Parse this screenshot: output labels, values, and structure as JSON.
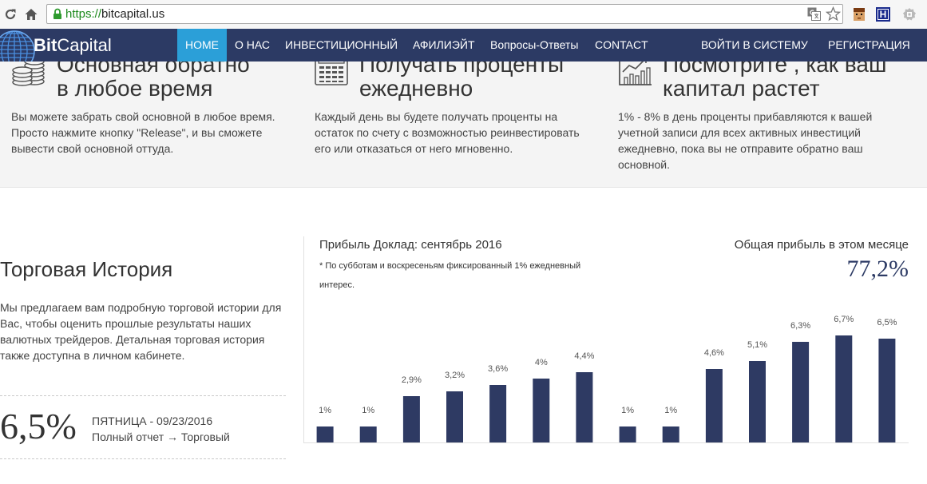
{
  "browser": {
    "url_scheme": "https://",
    "url_host": "bitcapital.us",
    "extension_h_label": "H",
    "icons": [
      "reload-icon",
      "home-icon",
      "lock-icon",
      "translate-icon",
      "star-icon",
      "face-extension-icon",
      "h-extension-icon",
      "gray-extension-icon"
    ]
  },
  "brand": {
    "name_bold": "Bit",
    "name_regular": "Capital"
  },
  "nav": {
    "items": [
      {
        "label": "HOME",
        "active": true
      },
      {
        "label": "О НАС"
      },
      {
        "label": "ИНВЕСТИЦИОННЫЙ"
      },
      {
        "label": "АФИЛИЭЙТ"
      },
      {
        "label": "Вопросы-Ответы"
      },
      {
        "label": "CONTACT"
      }
    ],
    "right_items": [
      {
        "label": "ВОЙТИ В СИСТЕМУ"
      },
      {
        "label": "РЕГИСТРАЦИЯ"
      }
    ]
  },
  "features": [
    {
      "icon": "coins-icon",
      "title_lines": [
        "Основная обратно",
        "в любое время"
      ],
      "text_lines": [
        "Вы можете забрать свой основной в любое время.",
        "Просто нажмите кнопку \"Release\", и вы сможете",
        "вывести свой основной оттуда."
      ]
    },
    {
      "icon": "calculator-icon",
      "title_lines": [
        "Получать проценты",
        "ежедневно"
      ],
      "text_lines": [
        "Каждый день вы будете получать проценты на",
        "остаток по счету с возможностью реинвестировать",
        "его или отказаться от него мгновенно."
      ]
    },
    {
      "icon": "growth-chart-icon",
      "title_lines": [
        "Посмотрите , как ваш",
        "капитал растет"
      ],
      "text_lines": [
        "1% - 8% в день проценты прибавляются к вашей",
        "учетной записи для всех активных инвестиций",
        "ежедневно, пока вы не отправите обратно ваш",
        "основной."
      ]
    }
  ],
  "trading": {
    "title": "Торговая История",
    "text_lines": [
      "Мы предлагаем вам подробную торговой истории для",
      "Вас, чтобы оценить прошлые результаты наших",
      "валютных трейдеров. Детальная торговая история",
      "также доступна в личном кабинете."
    ],
    "latest_value": "6,5%",
    "latest_date": "ПЯТНИЦА - 09/23/2016",
    "report_link": "Полный отчет → Торговый"
  },
  "report": {
    "note_lines": [
      "* По субботам и воскресеньям фиксированный 1% ежедневный",
      "интерес."
    ],
    "total_label": "Общая прибыль в этом месяце",
    "total_value": "77,2%"
  },
  "chart_data": {
    "type": "bar",
    "title": "Прибыль Доклад: сентябрь 2016",
    "values": [
      1,
      1,
      2.9,
      3.2,
      3.6,
      4,
      4.4,
      1,
      1,
      4.6,
      5.1,
      6.3,
      6.7,
      6.5
    ],
    "value_labels": [
      "1%",
      "1%",
      "2,9%",
      "3,2%",
      "3,6%",
      "4%",
      "4,4%",
      "1%",
      "1%",
      "4,6%",
      "5,1%",
      "6,3%",
      "6,7%",
      "6,5%"
    ],
    "grid": false,
    "legend": "none"
  },
  "colors": {
    "navbar": "#2c3a64",
    "nav_active": "#2b9fd8",
    "bar": "#2e3a63",
    "features_bg": "#f4f4f4",
    "url_scheme": "#1c8a1c"
  }
}
